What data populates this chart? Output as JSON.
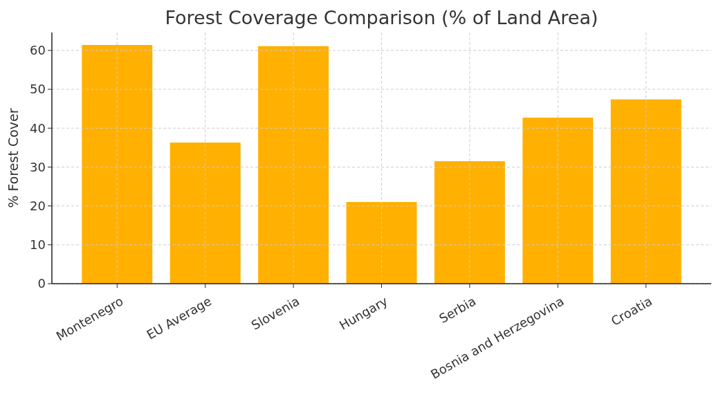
{
  "chart_data": {
    "type": "bar",
    "title": "Forest Coverage Comparison (% of Land Area)",
    "ylabel": "% Forest Cover",
    "categories": [
      "Montenegro",
      "EU Average",
      "Slovenia",
      "Hungary",
      "Serbia",
      "Bosnia and Herzegovina",
      "Croatia"
    ],
    "values": [
      61.4,
      36.3,
      61.1,
      21.0,
      31.5,
      42.7,
      47.4
    ],
    "color": "#ffb000",
    "ylim": [
      0,
      64.6
    ],
    "yticks": [
      0,
      10,
      20,
      30,
      40,
      50,
      60
    ],
    "grid": true
  }
}
